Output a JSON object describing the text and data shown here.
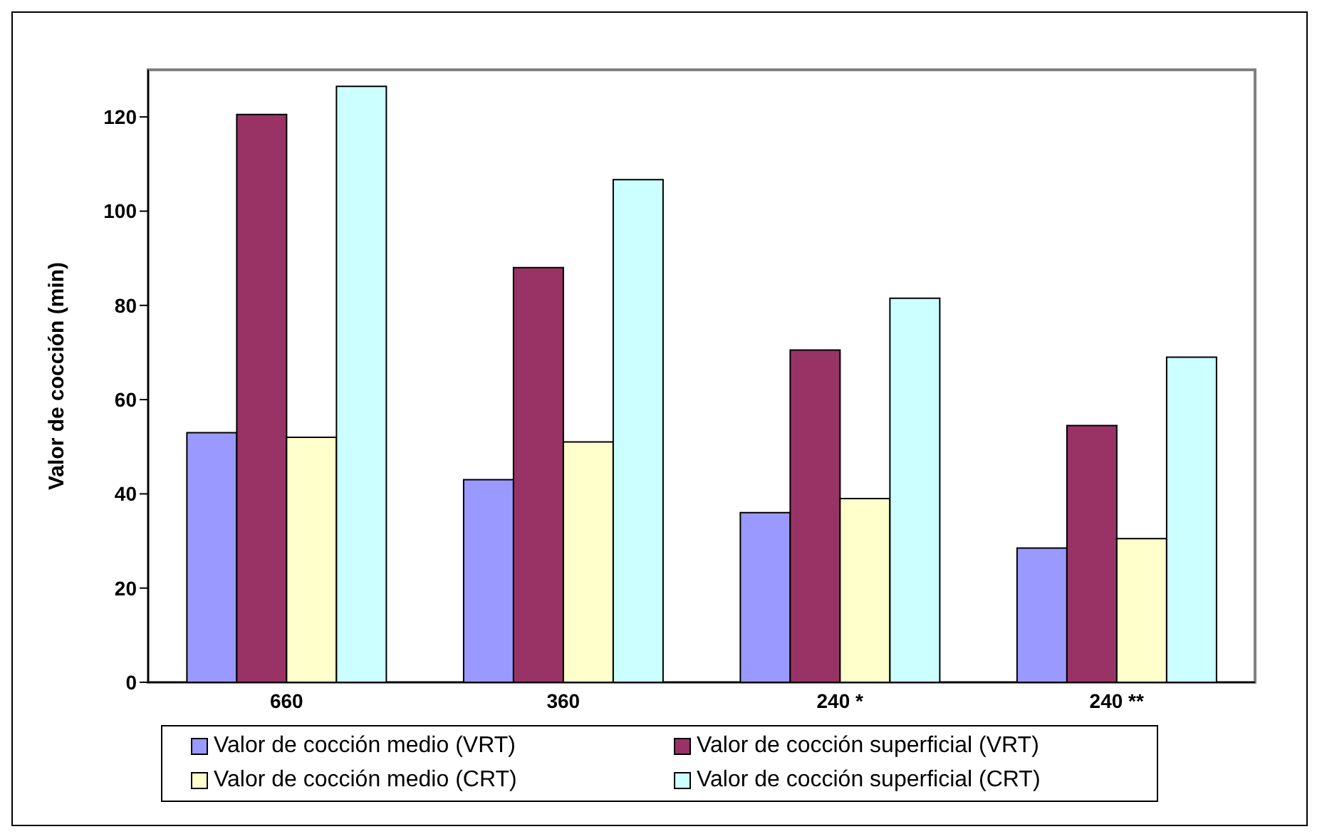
{
  "chart_data": {
    "type": "bar",
    "ylabel": "Valor de cocción (min)",
    "categories": [
      "660",
      "360",
      "240 *",
      "240 **"
    ],
    "series": [
      {
        "name": "Valor de cocción medio (VRT)",
        "color": "#9999ff",
        "values": [
          53,
          43,
          36,
          28.5
        ]
      },
      {
        "name": "Valor de cocción superficial (VRT)",
        "color": "#993366",
        "values": [
          120.5,
          88,
          70.5,
          54.5
        ]
      },
      {
        "name": "Valor de cocción medio (CRT)",
        "color": "#ffffcc",
        "values": [
          52,
          51,
          39,
          30.5
        ]
      },
      {
        "name": "Valor de cocción superficial (CRT)",
        "color": "#ccffff",
        "values": [
          126.5,
          106.7,
          81.5,
          69
        ]
      }
    ],
    "ylim": [
      0,
      130
    ],
    "yticks": [
      0,
      20,
      40,
      60,
      80,
      100,
      120
    ],
    "grid": false,
    "legend": "bottom"
  }
}
